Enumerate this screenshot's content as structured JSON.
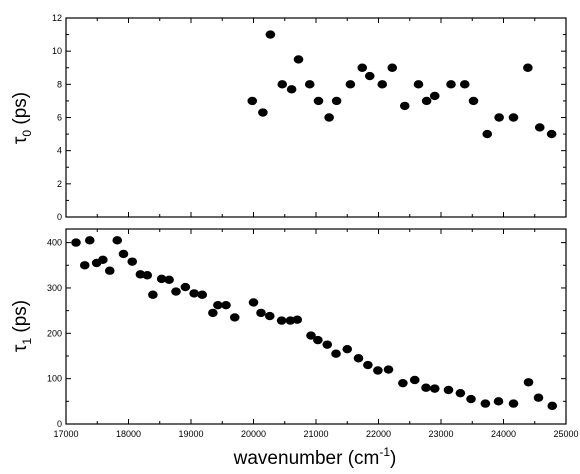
{
  "chart_data": [
    {
      "type": "scatter",
      "panel": "top",
      "ylabel_main": "τ",
      "ylabel_sub": "0",
      "ylabel_unit": " (ps)",
      "ylim": [
        0,
        12
      ],
      "yticks": [
        0,
        2,
        4,
        6,
        8,
        10,
        12
      ],
      "xlim": [
        17000,
        25000
      ],
      "grid": false,
      "points": [
        [
          19980,
          7.0
        ],
        [
          20150,
          6.3
        ],
        [
          20270,
          11.0
        ],
        [
          20460,
          8.0
        ],
        [
          20610,
          7.7
        ],
        [
          20720,
          9.5
        ],
        [
          20900,
          8.0
        ],
        [
          21040,
          7.0
        ],
        [
          21210,
          6.0
        ],
        [
          21330,
          7.0
        ],
        [
          21550,
          8.0
        ],
        [
          21740,
          9.0
        ],
        [
          21860,
          8.5
        ],
        [
          22060,
          8.0
        ],
        [
          22220,
          9.0
        ],
        [
          22420,
          6.7
        ],
        [
          22640,
          8.0
        ],
        [
          22770,
          7.0
        ],
        [
          22900,
          7.3
        ],
        [
          23160,
          8.0
        ],
        [
          23380,
          8.0
        ],
        [
          23520,
          7.0
        ],
        [
          23740,
          5.0
        ],
        [
          23930,
          6.0
        ],
        [
          24160,
          6.0
        ],
        [
          24390,
          9.0
        ],
        [
          24580,
          5.4
        ],
        [
          24770,
          5.0
        ]
      ]
    },
    {
      "type": "scatter",
      "panel": "bottom",
      "ylabel_main": "τ",
      "ylabel_sub": "1",
      "ylabel_unit": " (ps)",
      "ylim": [
        0,
        430
      ],
      "yticks": [
        0,
        100,
        200,
        300,
        400
      ],
      "xlim": [
        17000,
        25000
      ],
      "xticks": [
        17000,
        18000,
        19000,
        20000,
        21000,
        22000,
        23000,
        24000,
        25000
      ],
      "xlabel_main": "wavenumber (cm",
      "xlabel_sup": "-1",
      "xlabel_end": ")",
      "grid": false,
      "points": [
        [
          17160,
          400
        ],
        [
          17300,
          350
        ],
        [
          17380,
          405
        ],
        [
          17490,
          355
        ],
        [
          17590,
          362
        ],
        [
          17700,
          338
        ],
        [
          17820,
          405
        ],
        [
          17920,
          375
        ],
        [
          18060,
          358
        ],
        [
          18190,
          330
        ],
        [
          18300,
          328
        ],
        [
          18390,
          285
        ],
        [
          18530,
          320
        ],
        [
          18650,
          318
        ],
        [
          18760,
          292
        ],
        [
          18910,
          302
        ],
        [
          19050,
          288
        ],
        [
          19180,
          285
        ],
        [
          19350,
          245
        ],
        [
          19430,
          262
        ],
        [
          19560,
          262
        ],
        [
          19700,
          235
        ],
        [
          20000,
          268
        ],
        [
          20120,
          245
        ],
        [
          20260,
          238
        ],
        [
          20450,
          228
        ],
        [
          20590,
          228
        ],
        [
          20700,
          230
        ],
        [
          20920,
          195
        ],
        [
          21030,
          185
        ],
        [
          21180,
          175
        ],
        [
          21320,
          155
        ],
        [
          21500,
          165
        ],
        [
          21680,
          145
        ],
        [
          21830,
          130
        ],
        [
          21990,
          118
        ],
        [
          22160,
          120
        ],
        [
          22390,
          90
        ],
        [
          22580,
          97
        ],
        [
          22760,
          80
        ],
        [
          22900,
          78
        ],
        [
          23120,
          75
        ],
        [
          23310,
          68
        ],
        [
          23480,
          55
        ],
        [
          23710,
          45
        ],
        [
          23920,
          50
        ],
        [
          24160,
          45
        ],
        [
          24400,
          92
        ],
        [
          24560,
          58
        ],
        [
          24780,
          40
        ]
      ]
    }
  ]
}
